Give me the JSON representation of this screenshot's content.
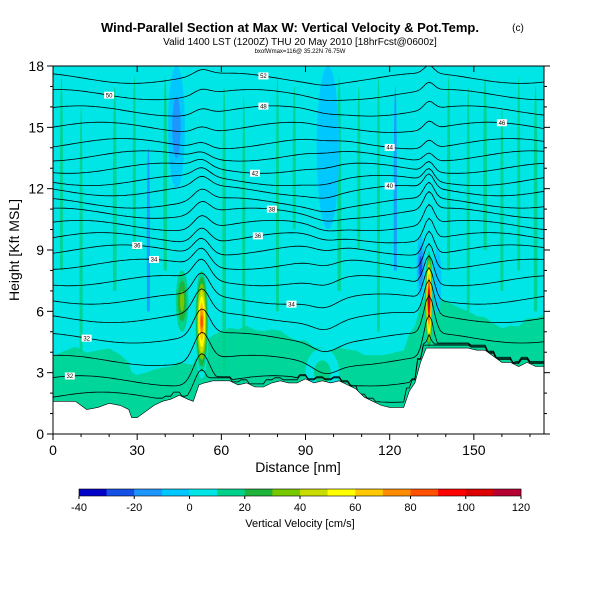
{
  "chart_data": {
    "type": "heatmap",
    "title": "Wind-Parallel Section at Max W: Vertical Velocity & Pot.Temp.",
    "title_mark": "(c)",
    "subtitle": "Valid 1400 LST (1200Z) THU 20 May 2010 [18hrFcst@0600z]",
    "subsubtitle": "bxofWmax=116@ 35.22N 76.75W",
    "xlabel": "Distance [nm]",
    "ylabel": "Height [Kft MSL]",
    "xlim": [
      0,
      175
    ],
    "ylim": [
      0,
      18
    ],
    "x_ticks": [
      0,
      30,
      60,
      90,
      120,
      150
    ],
    "y_ticks": [
      0,
      3,
      6,
      9,
      12,
      15,
      18
    ],
    "colorbar": {
      "label": "Vertical Velocity [cm/s]",
      "ticks": [
        -40,
        -20,
        0,
        20,
        40,
        60,
        80,
        100,
        120
      ],
      "range": [
        -40,
        120
      ],
      "colors": [
        "#0000c8",
        "#1450e6",
        "#1e96ff",
        "#00c8ff",
        "#00e6e6",
        "#00d28c",
        "#1eb43c",
        "#78c800",
        "#c8dc00",
        "#ffff00",
        "#ffc800",
        "#ff8c00",
        "#ff5000",
        "#ff0000",
        "#dc0000",
        "#b40032"
      ]
    },
    "terrain": [
      [
        0,
        1.6
      ],
      [
        4,
        1.6
      ],
      [
        8,
        1.6
      ],
      [
        12,
        1.2
      ],
      [
        16,
        1.3
      ],
      [
        20,
        1.5
      ],
      [
        24,
        1.4
      ],
      [
        27,
        1.2
      ],
      [
        28,
        0.8
      ],
      [
        29,
        0.8
      ],
      [
        30,
        0.8
      ],
      [
        33,
        1.1
      ],
      [
        36,
        1.4
      ],
      [
        39,
        1.6
      ],
      [
        42,
        1.7
      ],
      [
        45,
        1.9
      ],
      [
        48,
        1.7
      ],
      [
        50,
        1.6
      ],
      [
        52,
        2.4
      ],
      [
        54,
        2.5
      ],
      [
        57,
        2.6
      ],
      [
        60,
        2.6
      ],
      [
        63,
        2.6
      ],
      [
        66,
        2.4
      ],
      [
        69,
        2.5
      ],
      [
        72,
        2.3
      ],
      [
        75,
        2.3
      ],
      [
        78,
        2.5
      ],
      [
        81,
        2.6
      ],
      [
        84,
        2.5
      ],
      [
        87,
        2.5
      ],
      [
        90,
        2.7
      ],
      [
        93,
        2.5
      ],
      [
        96,
        2.6
      ],
      [
        99,
        2.5
      ],
      [
        102,
        2.6
      ],
      [
        105,
        2.4
      ],
      [
        108,
        2.2
      ],
      [
        111,
        1.8
      ],
      [
        114,
        1.6
      ],
      [
        117,
        1.4
      ],
      [
        120,
        1.3
      ],
      [
        123,
        1.3
      ],
      [
        125,
        1.3
      ],
      [
        127,
        2.1
      ],
      [
        129,
        2.5
      ],
      [
        131,
        3.5
      ],
      [
        133,
        4.2
      ],
      [
        136,
        4.2
      ],
      [
        139,
        4.2
      ],
      [
        142,
        4.2
      ],
      [
        145,
        4.2
      ],
      [
        148,
        4.2
      ],
      [
        151,
        4.1
      ],
      [
        154,
        4.1
      ],
      [
        157,
        3.8
      ],
      [
        160,
        3.5
      ],
      [
        163,
        3.5
      ],
      [
        166,
        3.3
      ],
      [
        169,
        3.5
      ],
      [
        172,
        3.3
      ],
      [
        175,
        3.3
      ]
    ],
    "updrafts": [
      {
        "x": 53,
        "z": 5.5,
        "w": 95,
        "width": 2.5,
        "depth": 2.8
      },
      {
        "x": 134,
        "z": 6.5,
        "w": 120,
        "width": 1.4,
        "depth": 2.7
      },
      {
        "x": 46,
        "z": 6.5,
        "w": 45,
        "width": 3,
        "depth": 2.0
      },
      {
        "x": 96,
        "z": 3.0,
        "w": 28,
        "width": 6,
        "depth": 1.2
      }
    ],
    "downdrafts": [
      {
        "x": 44,
        "z": 15,
        "w": -22,
        "width": 3,
        "depth": 3.0
      },
      {
        "x": 131,
        "z": 8.2,
        "w": -30,
        "width": 1.4,
        "depth": 1.5
      },
      {
        "x": 137,
        "z": 7.5,
        "w": -18,
        "width": 1.4,
        "depth": 1.6
      },
      {
        "x": 98,
        "z": 14,
        "w": -14,
        "width": 4,
        "depth": 4.0
      }
    ],
    "isentropes": [
      {
        "base": 1.8,
        "label": "",
        "label_x": 0
      },
      {
        "base": 2.6,
        "label": "32",
        "label_x": 6
      },
      {
        "base": 3.6,
        "label": "",
        "label_x": 0
      },
      {
        "base": 4.7,
        "label": "32",
        "label_x": 12
      },
      {
        "base": 5.7,
        "label": "",
        "label_x": 0
      },
      {
        "base": 6.6,
        "label": "34",
        "label_x": 85
      },
      {
        "base": 7.5,
        "label": "",
        "label_x": 0
      },
      {
        "base": 8.3,
        "label": "34",
        "label_x": 36
      },
      {
        "base": 9.0,
        "label": "36",
        "label_x": 30
      },
      {
        "base": 9.6,
        "label": "36",
        "label_x": 73
      },
      {
        "base": 10.2,
        "label": "",
        "label_x": 0
      },
      {
        "base": 10.8,
        "label": "38",
        "label_x": 78
      },
      {
        "base": 11.3,
        "label": "",
        "label_x": 0
      },
      {
        "base": 11.9,
        "label": "40",
        "label_x": 120
      },
      {
        "base": 12.4,
        "label": "",
        "label_x": 0
      },
      {
        "base": 13.0,
        "label": "42",
        "label_x": 72
      },
      {
        "base": 13.6,
        "label": "",
        "label_x": 0
      },
      {
        "base": 14.2,
        "label": "44",
        "label_x": 120
      },
      {
        "base": 15.0,
        "label": "46",
        "label_x": 160
      },
      {
        "base": 15.8,
        "label": "48",
        "label_x": 75
      },
      {
        "base": 16.6,
        "label": "50",
        "label_x": 20
      },
      {
        "base": 17.4,
        "label": "52",
        "label_x": 75
      }
    ]
  }
}
